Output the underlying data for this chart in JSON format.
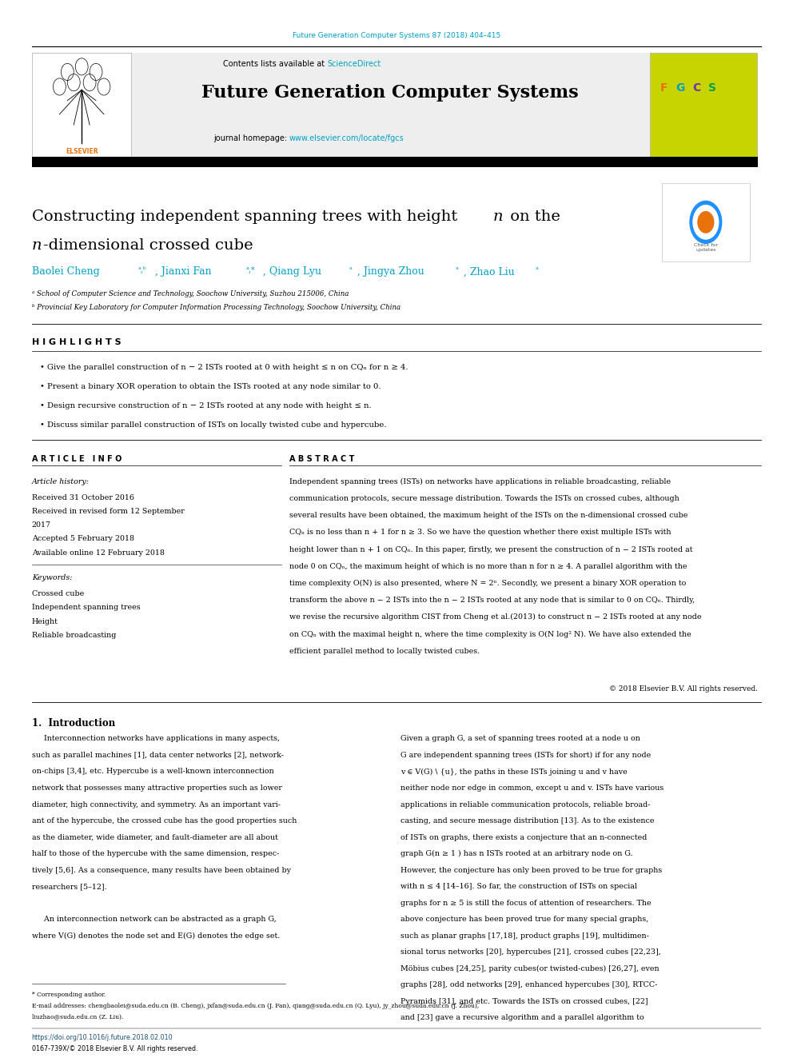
{
  "page_width": 9.92,
  "page_height": 13.23,
  "bg_color": "#ffffff",
  "journal_header_text": "Future Generation Computer Systems 87 (2018) 404–415",
  "journal_header_color": "#00a0c6",
  "contents_text": "Contents lists available at ",
  "sciencedirect_text": "ScienceDirect",
  "sciencedirect_color": "#00a0c6",
  "journal_name": "Future Generation Computer Systems",
  "journal_homepage_text": "journal homepage: ",
  "journal_homepage_url": "www.elsevier.com/locate/fgcs",
  "journal_homepage_color": "#00a0c6",
  "header_bg_color": "#eeeeee",
  "thick_bar_color": "#000000",
  "authors_color": "#00a0c6",
  "affil_a": "ᵃ School of Computer Science and Technology, Soochow University, Suzhou 215006, China",
  "affil_b": "ᵇ Provincial Key Laboratory for Computer Information Processing Technology, Soochow University, China",
  "highlights_title": "H I G H L I G H T S",
  "highlights": [
    "Give the parallel construction of n − 2 ISTs rooted at 0 with height ≤ n on CQₙ for n ≥ 4.",
    "Present a binary XOR operation to obtain the ISTs rooted at any node similar to 0.",
    "Design recursive construction of n − 2 ISTs rooted at any node with height ≤ n.",
    "Discuss similar parallel construction of ISTs on locally twisted cube and hypercube."
  ],
  "article_info_title": "A R T I C L E   I N F O",
  "abstract_title": "A B S T R A C T",
  "article_history_label": "Article history:",
  "received_date": "Received 31 October 2016",
  "revised_date": "Received in revised form 12 September",
  "revised_date2": "2017",
  "accepted_date": "Accepted 5 February 2018",
  "available_date": "Available online 12 February 2018",
  "keywords_label": "Keywords:",
  "keywords": [
    "Crossed cube",
    "Independent spanning trees",
    "Height",
    "Reliable broadcasting"
  ],
  "abstract_text": "Independent spanning trees (ISTs) on networks have applications in reliable broadcasting, reliable communication protocols, secure message distribution. Towards the ISTs on crossed cubes, although several results have been obtained, the maximum height of the ISTs on the n-dimensional crossed cube CQₙ is no less than n + 1 for n ≥ 3. So we have the question whether there exist multiple ISTs with height lower than n + 1 on CQₙ. In this paper, firstly, we present the construction of n − 2 ISTs rooted at node 0 on CQₙ, the maximum height of which is no more than n for n ≥ 4. A parallel algorithm with the time complexity O(N) is also presented, where N = 2ⁿ. Secondly, we present a binary XOR operation to transform the above n − 2 ISTs into the n − 2 ISTs rooted at any node that is similar to 0 on CQₙ. Thirdly, we revise the recursive algorithm CIST from Cheng et al.(2013) to construct n − 2 ISTs rooted at any node on CQₙ with the maximal height n, where the time complexity is O(N log² N). We have also extended the efficient parallel method to locally twisted cubes.",
  "copyright_text": "© 2018 Elsevier B.V. All rights reserved.",
  "section1_title": "1.  Introduction",
  "intro_col1_lines": [
    "     Interconnection networks have applications in many aspects,",
    "such as parallel machines [1], data center networks [2], network-",
    "on-chips [3,4], etc. Hypercube is a well-known interconnection",
    "network that possesses many attractive properties such as lower",
    "diameter, high connectivity, and symmetry. As an important vari-",
    "ant of the hypercube, the crossed cube has the good properties such",
    "as the diameter, wide diameter, and fault-diameter are all about",
    "half to those of the hypercube with the same dimension, respec-",
    "tively [5,6]. As a consequence, many results have been obtained by",
    "researchers [5–12].",
    "",
    "     An interconnection network can be abstracted as a graph G,",
    "where V(G) denotes the node set and E(G) denotes the edge set."
  ],
  "intro_col2_lines": [
    "Given a graph G, a set of spanning trees rooted at a node u on",
    "G are independent spanning trees (ISTs for short) if for any node",
    "v ∈ V(G) \\ {u}, the paths in these ISTs joining u and v have",
    "neither node nor edge in common, except u and v. ISTs have various",
    "applications in reliable communication protocols, reliable broad-",
    "casting, and secure message distribution [13]. As to the existence",
    "of ISTs on graphs, there exists a conjecture that an n-connected",
    "graph G(n ≥ 1 ) has n ISTs rooted at an arbitrary node on G.",
    "However, the conjecture has only been proved to be true for graphs",
    "with n ≤ 4 [14–16]. So far, the construction of ISTs on special",
    "graphs for n ≥ 5 is still the focus of attention of researchers. The",
    "above conjecture has been proved true for many special graphs,",
    "such as planar graphs [17,18], product graphs [19], multidimen-",
    "sional torus networks [20], hypercubes [21], crossed cubes [22,23],",
    "Möbius cubes [24,25], parity cubes(or twisted-cubes) [26,27], even",
    "graphs [28], odd networks [29], enhanced hypercubes [30], RTCC-",
    "Pyramids [31], and etc. Towards the ISTs on crossed cubes, [22]",
    "and [23] gave a recursive algorithm and a parallel algorithm to"
  ],
  "footer_doi": "https://doi.org/10.1016/j.future.2018.02.010",
  "footer_issn": "0167-739X/© 2018 Elsevier B.V. All rights reserved.",
  "corresponding_note": "* Corresponding author.",
  "email_note": "E-mail addresses: chengbaolei@suda.edu.cn (B. Cheng), jxfan@suda.edu.cn (J. Fan), qiang@suda.edu.cn (Q. Lyu), jy_zhou@suda.edu.cn (J. Zhou),",
  "email_note2": "liuzhao@suda.edu.cn (Z. Liu)."
}
